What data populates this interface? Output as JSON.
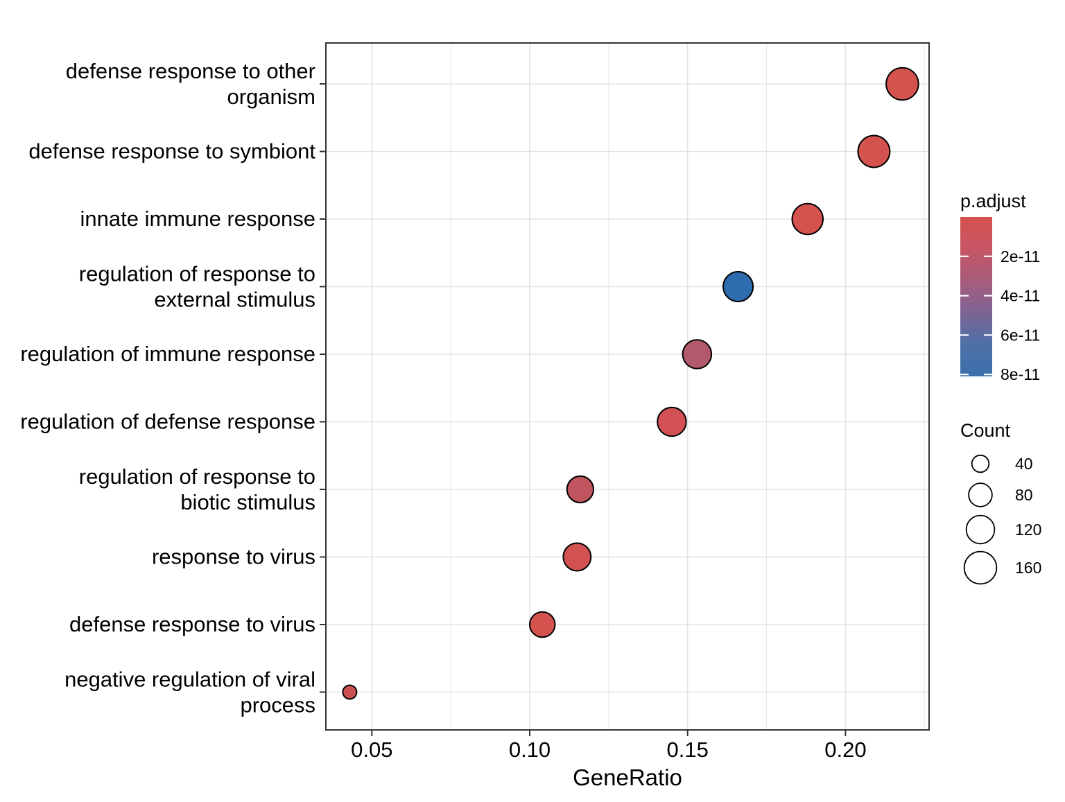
{
  "chart_data": {
    "type": "scatter",
    "variant": "enrichment-dotplot",
    "title": "",
    "xlabel": "GeneRatio",
    "ylabel": "",
    "x_tick_labels": [
      "0.05",
      "0.10",
      "0.15",
      "0.20"
    ],
    "x_tick_values": [
      0.05,
      0.1,
      0.15,
      0.2
    ],
    "x_minor_tick_values": [
      0.075,
      0.125,
      0.175,
      0.225
    ],
    "xlim": [
      0.035,
      0.227
    ],
    "grid": true,
    "legend_position": "right",
    "categories": [
      {
        "label": "defense response to other organism",
        "lines": [
          "defense response to other",
          "organism"
        ]
      },
      {
        "label": "defense response to symbiont",
        "lines": [
          "defense response to symbiont"
        ]
      },
      {
        "label": "innate immune response",
        "lines": [
          "innate immune response"
        ]
      },
      {
        "label": "regulation of response to external stimulus",
        "lines": [
          "regulation of response to",
          "external stimulus"
        ]
      },
      {
        "label": "regulation of immune response",
        "lines": [
          "regulation of immune response"
        ]
      },
      {
        "label": "regulation of defense response",
        "lines": [
          "regulation of defense response"
        ]
      },
      {
        "label": "regulation of response to biotic stimulus",
        "lines": [
          "regulation of response to",
          "biotic stimulus"
        ]
      },
      {
        "label": "response to virus",
        "lines": [
          "response to virus"
        ]
      },
      {
        "label": "defense response to virus",
        "lines": [
          "defense response to virus"
        ]
      },
      {
        "label": "negative regulation of viral process",
        "lines": [
          "negative regulation of viral",
          "process"
        ]
      }
    ],
    "points": [
      {
        "label": "defense response to other organism",
        "gene_ratio": 0.218,
        "count": 160,
        "p_adjust": 1e-12,
        "color": "#D5534F"
      },
      {
        "label": "defense response to symbiont",
        "gene_ratio": 0.209,
        "count": 155,
        "p_adjust": 1e-12,
        "color": "#D5534F"
      },
      {
        "label": "innate immune response",
        "gene_ratio": 0.188,
        "count": 145,
        "p_adjust": 1e-12,
        "color": "#D5534F"
      },
      {
        "label": "regulation of response to external stimulus",
        "gene_ratio": 0.166,
        "count": 135,
        "p_adjust": 8e-11,
        "color": "#2D6CAD"
      },
      {
        "label": "regulation of immune response",
        "gene_ratio": 0.153,
        "count": 125,
        "p_adjust": 3e-11,
        "color": "#B2596D"
      },
      {
        "label": "regulation of defense response",
        "gene_ratio": 0.145,
        "count": 125,
        "p_adjust": 5e-12,
        "color": "#D25157"
      },
      {
        "label": "regulation of response to biotic stimulus",
        "gene_ratio": 0.116,
        "count": 105,
        "p_adjust": 1.5e-11,
        "color": "#C1555F"
      },
      {
        "label": "response to virus",
        "gene_ratio": 0.115,
        "count": 115,
        "p_adjust": 3e-12,
        "color": "#D25252"
      },
      {
        "label": "defense response to virus",
        "gene_ratio": 0.104,
        "count": 95,
        "p_adjust": 1e-12,
        "color": "#D5534F"
      },
      {
        "label": "negative regulation of viral process",
        "gene_ratio": 0.043,
        "count": 25,
        "p_adjust": 4e-12,
        "color": "#CC5052"
      }
    ],
    "legend_padjust": {
      "title": "p.adjust",
      "tick_labels": [
        "2e-11",
        "4e-11",
        "6e-11",
        "8e-11"
      ],
      "tick_values": [
        2e-11,
        4e-11,
        6e-11,
        8e-11
      ],
      "scale_max": 8.1e-11,
      "gradient": [
        "#D5514E",
        "#C65665",
        "#A85B7B",
        "#7E6494",
        "#4E70A7",
        "#3B70AB"
      ]
    },
    "legend_count": {
      "title": "Count",
      "items": [
        {
          "label": "40",
          "count": 40
        },
        {
          "label": "80",
          "count": 80
        },
        {
          "label": "120",
          "count": 120
        },
        {
          "label": "160",
          "count": 160
        }
      ]
    }
  }
}
